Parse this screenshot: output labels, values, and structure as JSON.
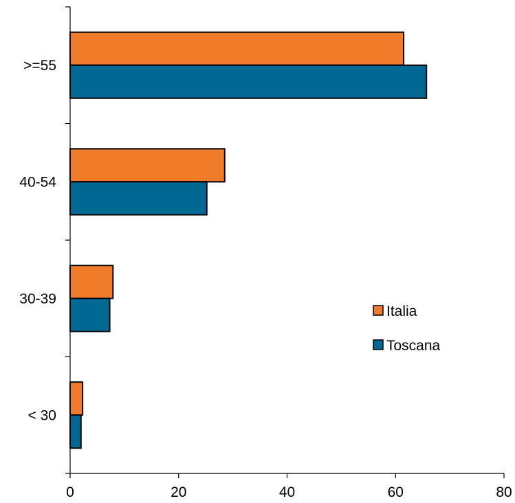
{
  "colors": {
    "italia": "#f07c2a",
    "toscana": "#006892",
    "axis": "#000000",
    "background": "#ffffff"
  },
  "chart_data": {
    "type": "bar",
    "orientation": "horizontal",
    "categories": [
      "< 30",
      "30-39",
      "40-54",
      ">=55"
    ],
    "series": [
      {
        "name": "Italia",
        "color": "#f07c2a",
        "values": [
          2.3,
          7.9,
          28.5,
          61.5
        ]
      },
      {
        "name": "Toscana",
        "color": "#006892",
        "values": [
          2.0,
          7.3,
          25.2,
          65.7
        ]
      }
    ],
    "xlim": [
      0,
      80
    ],
    "x_ticks": [
      0,
      20,
      40,
      60,
      80
    ],
    "title": "",
    "xlabel": "",
    "ylabel": "",
    "grid": false,
    "legend_position": "right"
  }
}
